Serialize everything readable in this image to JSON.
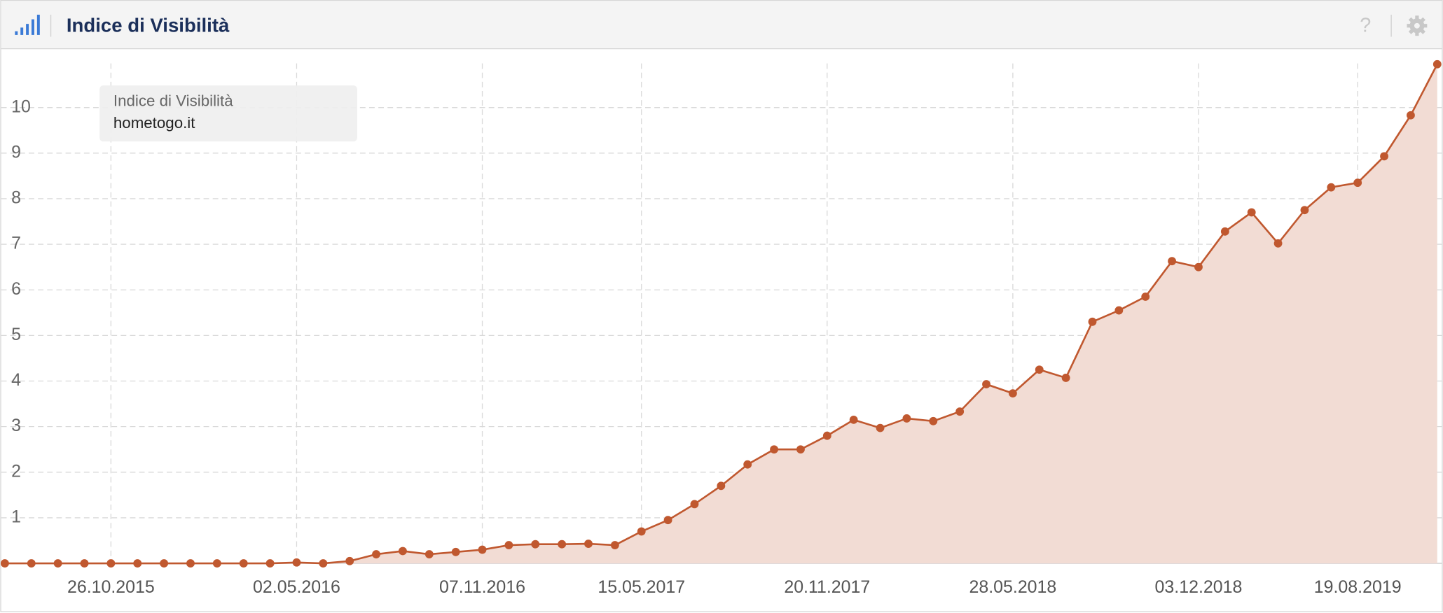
{
  "chart_data": {
    "type": "area",
    "title": "Indice di Visibilità",
    "legend_title": "Indice di Visibilità",
    "categories": [
      null,
      null,
      null,
      null,
      "26.10.2015",
      null,
      null,
      null,
      null,
      null,
      null,
      "02.05.2016",
      null,
      null,
      null,
      null,
      null,
      null,
      "07.11.2016",
      null,
      null,
      null,
      null,
      null,
      "15.05.2017",
      null,
      null,
      null,
      null,
      null,
      null,
      "20.11.2017",
      null,
      null,
      null,
      null,
      null,
      null,
      "28.05.2018",
      null,
      null,
      null,
      null,
      null,
      null,
      "03.12.2018",
      null,
      null,
      null,
      null,
      null,
      "19.08.2019",
      null,
      null,
      null
    ],
    "series": [
      {
        "name": "hometogo.it",
        "color": "#c0582f",
        "fill": "#f2dcd4",
        "values": [
          0,
          0,
          0,
          0,
          0,
          0,
          0,
          0,
          0,
          0,
          0,
          0.02,
          0,
          0.05,
          0.2,
          0.27,
          0.2,
          0.25,
          0.3,
          0.4,
          0.42,
          0.42,
          0.43,
          0.4,
          0.7,
          0.95,
          1.3,
          1.7,
          2.17,
          2.5,
          2.5,
          2.8,
          3.15,
          2.97,
          3.18,
          3.12,
          3.33,
          3.93,
          3.73,
          4.25,
          4.07,
          5.3,
          5.55,
          5.85,
          6.63,
          6.5,
          7.28,
          7.7,
          7.02,
          7.75,
          8.25,
          8.35,
          8.93,
          9.83,
          10.95
        ]
      }
    ],
    "ylim": [
      0,
      11.25
    ],
    "yticks": [
      1,
      2,
      3,
      4,
      5,
      6,
      7,
      8,
      9,
      10
    ],
    "grid": true
  }
}
